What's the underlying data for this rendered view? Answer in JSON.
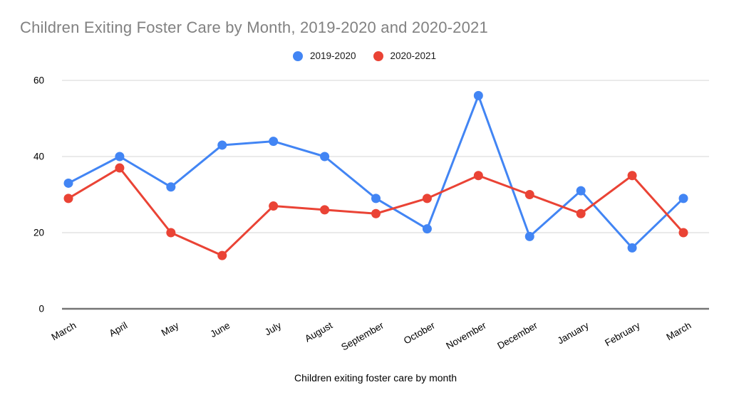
{
  "chart_data": {
    "type": "line",
    "title": "Children Exiting Foster Care by Month, 2019-2020 and 2020-2021",
    "xlabel": "Children exiting foster care by month",
    "ylabel": "",
    "categories": [
      "March",
      "April",
      "May",
      "June",
      "July",
      "August",
      "September",
      "October",
      "November",
      "December",
      "January",
      "February",
      "March"
    ],
    "series": [
      {
        "name": "2019-2020",
        "color": "#4285F4",
        "values": [
          33,
          40,
          32,
          43,
          44,
          40,
          29,
          21,
          56,
          19,
          31,
          16,
          29
        ]
      },
      {
        "name": "2020-2021",
        "color": "#EA4335",
        "values": [
          29,
          37,
          20,
          14,
          27,
          26,
          25,
          29,
          35,
          30,
          25,
          35,
          20
        ]
      }
    ],
    "yticks": [
      0,
      20,
      40,
      60
    ],
    "ylim": [
      0,
      60
    ],
    "grid": "horizontal",
    "legend_position": "top",
    "x_label_rotation_deg": -30
  },
  "colors": {
    "title_text": "#818181",
    "axis_line": "#757575",
    "gridline": "#e3e3e3",
    "tick_label_text": "#000000",
    "background": "#ffffff"
  }
}
